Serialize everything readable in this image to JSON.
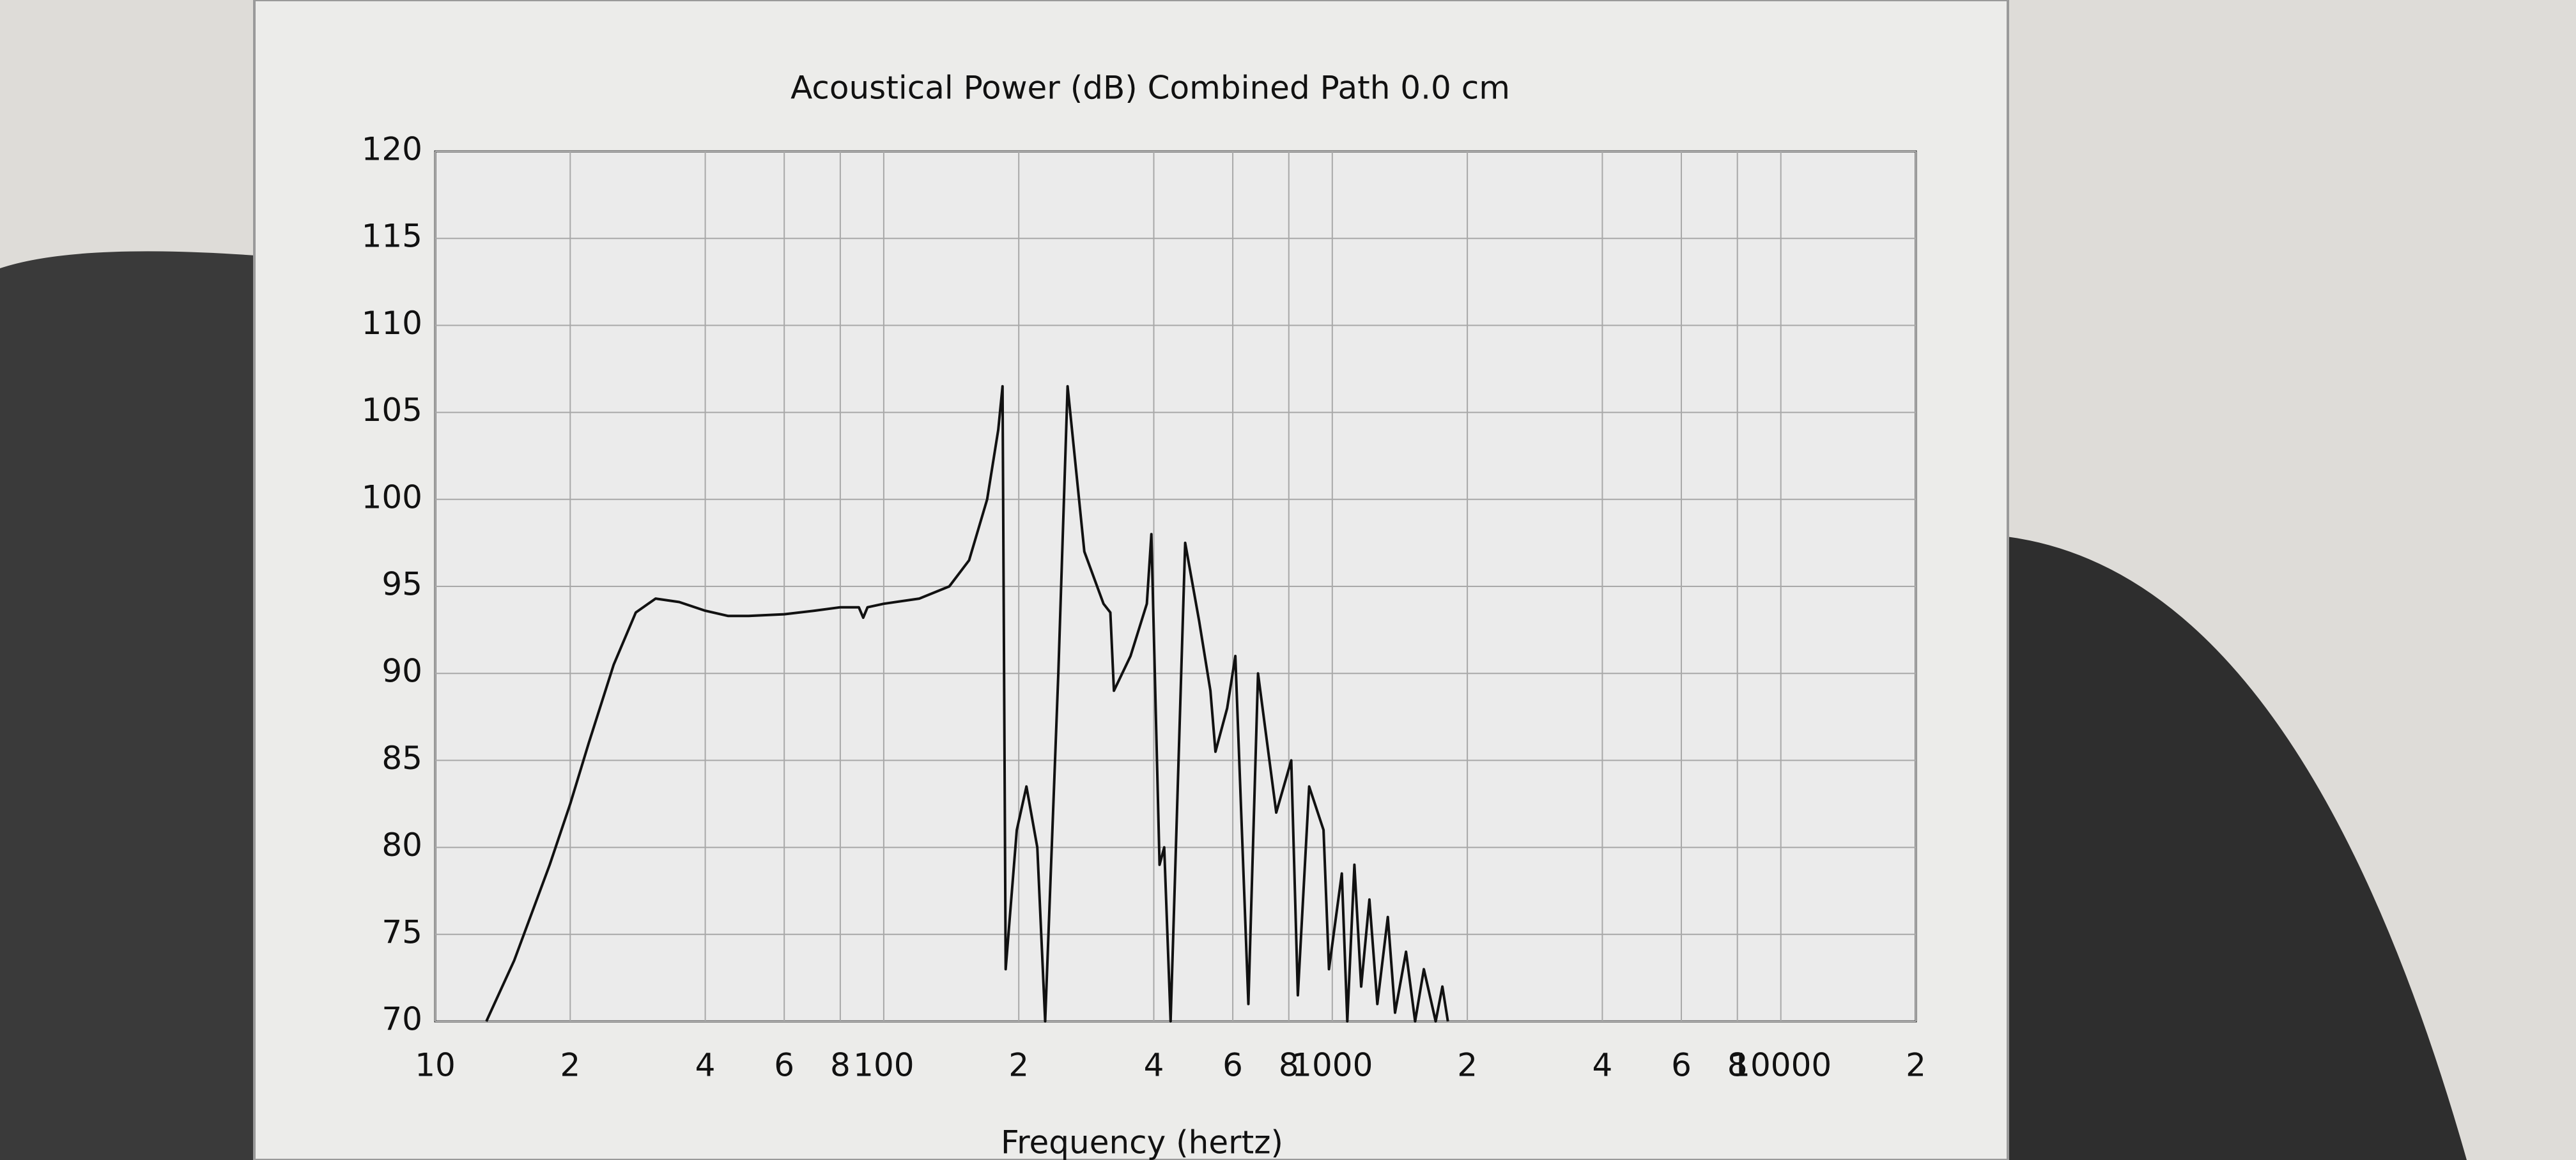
{
  "chart_data": {
    "type": "line",
    "title": "Acoustical Power (dB)   Combined   Path 0.0 cm",
    "x_label": "Frequency (hertz)",
    "xscale": "log",
    "grid": true,
    "color": "#111111",
    "xlim": [
      10,
      20000
    ],
    "ylim": [
      70,
      120
    ],
    "xticks": [
      10,
      {
        "value": 20,
        "label": "2"
      },
      {
        "value": 40,
        "label": "4"
      },
      {
        "value": 60,
        "label": "6"
      },
      {
        "value": 80,
        "label": "8"
      },
      100,
      {
        "value": 200,
        "label": "2"
      },
      {
        "value": 400,
        "label": "4"
      },
      {
        "value": 600,
        "label": "6"
      },
      {
        "value": 800,
        "label": "8"
      },
      1000,
      {
        "value": 2000,
        "label": "2"
      },
      {
        "value": 4000,
        "label": "4"
      },
      {
        "value": 6000,
        "label": "6"
      },
      {
        "value": 8000,
        "label": "8"
      },
      10000,
      {
        "value": 20000,
        "label": "2"
      }
    ],
    "yticks": [
      70,
      75,
      80,
      85,
      90,
      95,
      100,
      105,
      110,
      115,
      120
    ],
    "x": [
      13,
      15,
      18,
      20,
      22,
      25,
      28,
      31,
      35,
      40,
      45,
      50,
      60,
      70,
      80,
      88,
      90,
      92,
      100,
      120,
      140,
      155,
      170,
      180,
      184,
      187,
      198,
      208,
      220,
      229,
      245,
      257,
      280,
      309,
      320,
      326,
      355,
      386,
      395,
      412,
      422,
      436,
      470,
      505,
      535,
      549,
      583,
      608,
      650,
      683,
      750,
      810,
      838,
      888,
      956,
      983,
      1050,
      1080,
      1120,
      1160,
      1210,
      1260,
      1330,
      1380,
      1460,
      1530,
      1600,
      1700,
      1760,
      1810
    ],
    "values": [
      70,
      73.5,
      79,
      82.5,
      86,
      90.5,
      93.5,
      94.3,
      94.1,
      93.6,
      93.3,
      93.3,
      93.4,
      93.6,
      93.8,
      93.8,
      93.2,
      93.8,
      94,
      94.3,
      95,
      96.5,
      100,
      104,
      106.5,
      73,
      81,
      83.5,
      80,
      70,
      90,
      106.5,
      97,
      94,
      93.5,
      89,
      91,
      94,
      98,
      79,
      80,
      70,
      97.5,
      93,
      89,
      85.5,
      88,
      91,
      71,
      90,
      82,
      85,
      71.5,
      83.5,
      81,
      73,
      78.5,
      70,
      79,
      72,
      77,
      71,
      76,
      70.5,
      74,
      70,
      73,
      70,
      72,
      70
    ]
  }
}
